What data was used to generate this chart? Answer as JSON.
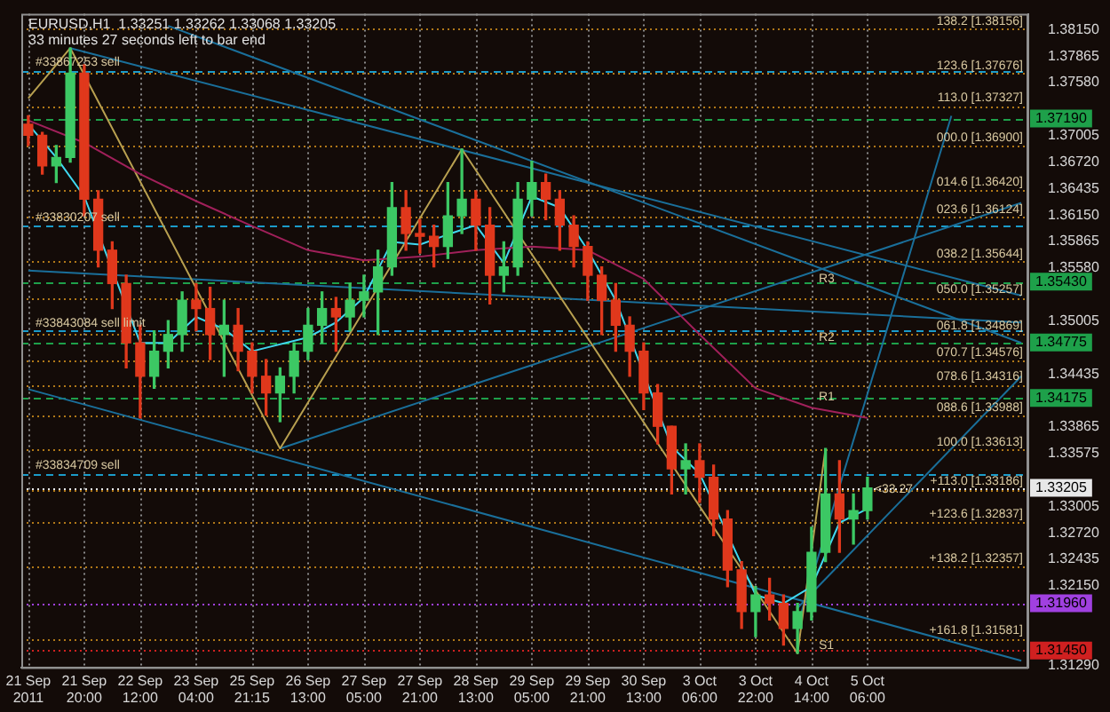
{
  "chart_data": {
    "type": "candlestick",
    "title": "EURUSD,H1  1.33251 1.33262 1.33068 1.33205",
    "subtitle": "33 minutes 27 seconds left to bar end",
    "categories": [
      "21 Sep 2011",
      null,
      null,
      null,
      "21 Sep 20:00",
      null,
      null,
      null,
      "22 Sep 12:00",
      null,
      null,
      null,
      "23 Sep 04:00",
      null,
      null,
      null,
      "25 Sep 21:15",
      null,
      null,
      null,
      "26 Sep 13:00",
      null,
      null,
      null,
      "27 Sep 05:00",
      null,
      null,
      null,
      "27 Sep 21:00",
      null,
      null,
      null,
      "28 Sep 13:00",
      null,
      null,
      null,
      "29 Sep 05:00",
      null,
      null,
      null,
      "29 Sep 21:00",
      null,
      null,
      null,
      "30 Sep 13:00",
      null,
      null,
      null,
      "3 Oct 06:00",
      null,
      null,
      null,
      "3 Oct 22:00",
      null,
      null,
      null,
      "4 Oct 14:00",
      null,
      null,
      null,
      "5 Oct 06:00",
      null,
      null,
      null,
      null,
      null,
      null,
      null,
      null,
      null,
      null,
      null
    ],
    "ohlc": [
      [
        1.3713,
        1.3722,
        1.369,
        1.3701
      ],
      [
        1.3701,
        1.3704,
        1.3659,
        1.3668
      ],
      [
        1.3668,
        1.369,
        1.365,
        1.3677
      ],
      [
        1.3677,
        1.3795,
        1.3672,
        1.3768
      ],
      [
        1.3768,
        1.3777,
        1.3614,
        1.3632
      ],
      [
        1.3632,
        1.3641,
        1.3559,
        1.3577
      ],
      [
        1.3577,
        1.3586,
        1.3514,
        1.3541
      ],
      [
        1.3541,
        1.355,
        1.345,
        1.3477
      ],
      [
        1.3477,
        1.3496,
        1.3396,
        1.3441
      ],
      [
        1.3441,
        1.349,
        1.3428,
        1.3468
      ],
      [
        1.3468,
        1.3501,
        1.345,
        1.3486
      ],
      [
        1.3486,
        1.3532,
        1.3468,
        1.3523
      ],
      [
        1.3523,
        1.3541,
        1.349,
        1.3514
      ],
      [
        1.3514,
        1.3537,
        1.3459,
        1.3486
      ],
      [
        1.3486,
        1.3523,
        1.3441,
        1.3496
      ],
      [
        1.3496,
        1.3514,
        1.3447,
        1.3468
      ],
      [
        1.3468,
        1.3477,
        1.3423,
        1.3441
      ],
      [
        1.3441,
        1.3459,
        1.3399,
        1.3423
      ],
      [
        1.3423,
        1.345,
        1.3392,
        1.3441
      ],
      [
        1.3441,
        1.3477,
        1.3423,
        1.3468
      ],
      [
        1.3468,
        1.3514,
        1.3459,
        1.3496
      ],
      [
        1.3496,
        1.3532,
        1.3477,
        1.3514
      ],
      [
        1.3514,
        1.3526,
        1.3468,
        1.3505
      ],
      [
        1.3505,
        1.3541,
        1.349,
        1.3523
      ],
      [
        1.3523,
        1.355,
        1.3505,
        1.3532
      ],
      [
        1.3532,
        1.3577,
        1.3486,
        1.3559
      ],
      [
        1.3559,
        1.365,
        1.355,
        1.3623
      ],
      [
        1.3623,
        1.3641,
        1.3577,
        1.3595
      ],
      [
        1.3595,
        1.361,
        1.3574,
        1.3592
      ],
      [
        1.3592,
        1.3604,
        1.3559,
        1.3581
      ],
      [
        1.3581,
        1.365,
        1.3568,
        1.3614
      ],
      [
        1.3614,
        1.3686,
        1.3595,
        1.3632
      ],
      [
        1.3632,
        1.3641,
        1.3577,
        1.3604
      ],
      [
        1.3604,
        1.3623,
        1.3519,
        1.355
      ],
      [
        1.355,
        1.3586,
        1.3532,
        1.3559
      ],
      [
        1.3559,
        1.365,
        1.355,
        1.3632
      ],
      [
        1.3632,
        1.3673,
        1.3614,
        1.365
      ],
      [
        1.365,
        1.3659,
        1.361,
        1.3632
      ],
      [
        1.3632,
        1.3641,
        1.3577,
        1.3604
      ],
      [
        1.3604,
        1.3614,
        1.3559,
        1.3581
      ],
      [
        1.3581,
        1.3586,
        1.3523,
        1.355
      ],
      [
        1.355,
        1.3559,
        1.3486,
        1.3523
      ],
      [
        1.3523,
        1.3541,
        1.3468,
        1.3496
      ],
      [
        1.3496,
        1.3505,
        1.3441,
        1.3468
      ],
      [
        1.3468,
        1.3477,
        1.3405,
        1.3423
      ],
      [
        1.3423,
        1.3432,
        1.3368,
        1.3387
      ],
      [
        1.3387,
        1.3387,
        1.3314,
        1.3341
      ],
      [
        1.3341,
        1.3368,
        1.3314,
        1.335
      ],
      [
        1.335,
        1.3368,
        1.3305,
        1.3332
      ],
      [
        1.3332,
        1.3345,
        1.3269,
        1.3287
      ],
      [
        1.3287,
        1.3296,
        1.3214,
        1.3232
      ],
      [
        1.3232,
        1.3241,
        1.3169,
        1.3187
      ],
      [
        1.3187,
        1.3214,
        1.316,
        1.3205
      ],
      [
        1.3205,
        1.3223,
        1.3178,
        1.3196
      ],
      [
        1.3196,
        1.3205,
        1.3151,
        1.3169
      ],
      [
        1.3169,
        1.3196,
        1.3142,
        1.3187
      ],
      [
        1.3187,
        1.3278,
        1.3178,
        1.3251
      ],
      [
        1.3251,
        1.3363,
        1.3241,
        1.3314
      ],
      [
        1.3314,
        1.335,
        1.3251,
        1.3287
      ],
      [
        1.3287,
        1.3314,
        1.326,
        1.3296
      ],
      [
        1.3296,
        1.3332,
        1.3287,
        1.33205
      ],
      null,
      null,
      null,
      null,
      null,
      null,
      null,
      null,
      null,
      null,
      null
    ],
    "colors": [
      "#e0381c",
      "#e0381c",
      "#3cc864",
      "#3cc864",
      "#e0381c",
      "#e0381c",
      "#e0381c",
      "#e0381c",
      "#e0381c",
      "#3cc864",
      "#3cc864",
      "#3cc864",
      "#e0381c",
      "#e0381c",
      "#3cc864",
      "#e0381c",
      "#e0381c",
      "#e0381c",
      "#3cc864",
      "#3cc864",
      "#3cc864",
      "#3cc864",
      "#e0381c",
      "#3cc864",
      "#3cc864",
      "#3cc864",
      "#3cc864",
      "#e0381c",
      "#e0381c",
      "#e0381c",
      "#3cc864",
      "#3cc864",
      "#e0381c",
      "#e0381c",
      "#3cc864",
      "#3cc864",
      "#3cc864",
      "#e0381c",
      "#e0381c",
      "#e0381c",
      "#e0381c",
      "#e0381c",
      "#e0381c",
      "#e0381c",
      "#e0381c",
      "#e0381c",
      "#e0381c",
      "#3cc864",
      "#e0381c",
      "#e0381c",
      "#e0381c",
      "#e0381c",
      "#3cc864",
      "#e0381c",
      "#e0381c",
      "#3cc864",
      "#3cc864",
      "#3cc864",
      "#e0381c",
      "#3cc864",
      "#3cc864",
      null,
      null,
      null,
      null,
      null,
      null,
      null,
      null,
      null,
      null,
      null
    ],
    "series": [
      {
        "type": "line",
        "color": "#a0205a",
        "values": [
          1.3717,
          null,
          null,
          null,
          1.3693,
          null,
          null,
          null,
          1.3659,
          null,
          null,
          null,
          1.363,
          null,
          null,
          null,
          1.3603,
          null,
          null,
          null,
          1.3577,
          null,
          null,
          null,
          1.3566,
          null,
          null,
          null,
          1.357,
          null,
          null,
          null,
          1.3577,
          null,
          null,
          null,
          1.3581,
          null,
          null,
          null,
          1.3577,
          null,
          null,
          null,
          1.3546,
          null,
          null,
          null,
          1.3486,
          null,
          null,
          null,
          1.3428,
          null,
          null,
          null,
          1.3407,
          null,
          null,
          null,
          1.3396,
          null,
          null,
          null,
          null,
          null,
          null,
          null,
          null,
          null,
          null,
          null
        ]
      },
      {
        "type": "line",
        "color": "#40d8f0",
        "values": [
          1.3713,
          null,
          1.3677,
          null,
          1.3635,
          null,
          null,
          null,
          1.3477,
          null,
          1.3477,
          null,
          1.3505,
          null,
          1.3492,
          null,
          1.3468,
          null,
          null,
          null,
          1.3483,
          null,
          1.3499,
          null,
          1.3526,
          null,
          1.3586,
          null,
          1.3583,
          null,
          1.3594,
          null,
          1.3604,
          null,
          1.3563,
          null,
          1.3635,
          null,
          1.3623,
          null,
          1.3577,
          null,
          1.3523,
          null,
          null,
          null,
          1.3365,
          null,
          1.3336,
          null,
          null,
          null,
          1.3205,
          null,
          1.3196,
          null,
          1.3214,
          null,
          1.3283,
          null,
          1.3298,
          null,
          null,
          null,
          null,
          null,
          null,
          null,
          null,
          null,
          null,
          null
        ]
      },
      {
        "type": "line",
        "color": "#b8a050",
        "values": [
          1.3741,
          null,
          null,
          1.3795,
          null,
          null,
          null,
          null,
          null,
          null,
          null,
          null,
          null,
          null,
          null,
          null,
          null,
          null,
          1.3363,
          null,
          null,
          null,
          null,
          null,
          null,
          null,
          null,
          null,
          null,
          null,
          null,
          1.3686,
          null,
          null,
          null,
          null,
          null,
          null,
          null,
          null,
          null,
          null,
          null,
          null,
          null,
          null,
          null,
          null,
          null,
          null,
          null,
          null,
          null,
          null,
          null,
          1.3142,
          null,
          1.3363,
          null,
          null,
          null,
          null,
          null,
          null,
          null,
          null,
          null,
          null,
          null,
          null,
          null,
          null
        ]
      },
      {
        "type": "line",
        "color": "#1a6f9a",
        "values": [
          null,
          null,
          null,
          null,
          null,
          null,
          null,
          null,
          null,
          null,
          1.3819,
          null,
          null,
          null,
          null,
          null,
          null,
          null,
          null,
          null,
          null,
          null,
          null,
          null,
          null,
          null,
          null,
          null,
          null,
          null,
          null,
          null,
          null,
          null,
          null,
          null,
          null,
          null,
          null,
          null,
          null,
          null,
          null,
          null,
          null,
          null,
          null,
          null,
          null,
          null,
          null,
          null,
          null,
          null,
          null,
          null,
          null,
          null,
          null,
          null,
          null,
          null,
          null,
          null,
          null,
          null,
          null,
          null,
          null,
          null,
          null,
          1.3477
        ]
      },
      {
        "type": "line",
        "color": "#1a6f9a",
        "values": [
          null,
          null,
          null,
          1.3795,
          null,
          null,
          null,
          null,
          null,
          null,
          null,
          null,
          null,
          null,
          null,
          null,
          null,
          null,
          null,
          null,
          null,
          null,
          null,
          null,
          null,
          null,
          null,
          null,
          null,
          null,
          null,
          null,
          null,
          null,
          null,
          null,
          null,
          null,
          null,
          null,
          null,
          null,
          null,
          null,
          null,
          null,
          null,
          null,
          null,
          null,
          null,
          null,
          null,
          null,
          null,
          null,
          null,
          null,
          null,
          null,
          null,
          null,
          null,
          null,
          null,
          null,
          null,
          null,
          null,
          null,
          null,
          1.3528
        ]
      },
      {
        "type": "line",
        "color": "#1a6f9a",
        "values": [
          1.3427,
          null,
          null,
          null,
          null,
          null,
          null,
          null,
          null,
          null,
          null,
          null,
          null,
          null,
          null,
          null,
          null,
          null,
          null,
          null,
          null,
          null,
          null,
          null,
          null,
          null,
          null,
          null,
          null,
          null,
          null,
          null,
          null,
          null,
          null,
          null,
          null,
          null,
          null,
          null,
          null,
          null,
          null,
          null,
          null,
          null,
          null,
          null,
          null,
          null,
          null,
          null,
          null,
          null,
          null,
          null,
          null,
          null,
          null,
          null,
          null,
          null,
          null,
          null,
          null,
          null,
          null,
          null,
          null,
          null,
          null,
          1.3134
        ]
      },
      {
        "type": "line",
        "color": "#1a6f9a",
        "values": [
          1.3555,
          null,
          null,
          null,
          null,
          null,
          null,
          null,
          null,
          null,
          null,
          null,
          null,
          null,
          null,
          null,
          null,
          null,
          null,
          null,
          null,
          null,
          null,
          null,
          null,
          null,
          null,
          null,
          null,
          null,
          null,
          null,
          null,
          null,
          null,
          null,
          null,
          null,
          null,
          null,
          null,
          null,
          null,
          null,
          null,
          null,
          null,
          null,
          null,
          null,
          null,
          null,
          null,
          null,
          null,
          null,
          null,
          null,
          null,
          null,
          null,
          null,
          null,
          null,
          null,
          null,
          null,
          null,
          null,
          null,
          null,
          1.3499
        ]
      },
      {
        "type": "line",
        "color": "#1a6f9a",
        "values": [
          null,
          null,
          null,
          null,
          null,
          null,
          null,
          null,
          null,
          null,
          null,
          null,
          null,
          null,
          null,
          null,
          null,
          null,
          1.3363,
          null,
          null,
          null,
          null,
          null,
          null,
          null,
          null,
          null,
          null,
          null,
          null,
          null,
          null,
          null,
          null,
          null,
          null,
          null,
          null,
          null,
          null,
          null,
          null,
          null,
          null,
          null,
          null,
          null,
          null,
          null,
          null,
          null,
          null,
          null,
          null,
          null,
          null,
          null,
          null,
          null,
          null,
          null,
          null,
          null,
          null,
          null,
          null,
          null,
          null,
          null,
          null,
          1.3628
        ]
      },
      {
        "type": "line",
        "color": "#1a6f9a",
        "values": [
          null,
          null,
          null,
          null,
          null,
          null,
          null,
          null,
          null,
          null,
          null,
          null,
          null,
          null,
          null,
          null,
          null,
          null,
          null,
          null,
          null,
          null,
          null,
          null,
          null,
          null,
          null,
          null,
          null,
          null,
          null,
          null,
          null,
          null,
          null,
          null,
          null,
          null,
          null,
          null,
          null,
          null,
          null,
          null,
          null,
          null,
          null,
          null,
          null,
          null,
          null,
          null,
          null,
          null,
          null,
          1.3172,
          null,
          null,
          null,
          null,
          null,
          null,
          null,
          null,
          null,
          null,
          1.3722,
          null,
          null,
          null,
          null,
          null
        ]
      },
      {
        "type": "line",
        "color": "#1a6f9a",
        "values": [
          null,
          null,
          null,
          null,
          null,
          null,
          null,
          null,
          null,
          null,
          null,
          null,
          null,
          null,
          null,
          null,
          null,
          null,
          null,
          null,
          null,
          null,
          null,
          null,
          null,
          null,
          null,
          null,
          null,
          null,
          null,
          null,
          null,
          null,
          null,
          null,
          null,
          null,
          null,
          null,
          null,
          null,
          null,
          null,
          null,
          null,
          null,
          null,
          null,
          null,
          null,
          null,
          null,
          null,
          null,
          1.3191,
          null,
          null,
          null,
          null,
          null,
          null,
          null,
          null,
          null,
          null,
          null,
          null,
          null,
          null,
          null,
          1.3441
        ]
      }
    ],
    "ylim": [
      1.3127,
      1.3832
    ],
    "yticks": [
      {
        "value": 1.3815,
        "label": "1.38150"
      },
      {
        "value": 1.37865,
        "label": "1.37865"
      },
      {
        "value": 1.3758,
        "label": "1.37580"
      },
      {
        "value": 1.37005,
        "label": "1.37005"
      },
      {
        "value": 1.3672,
        "label": "1.36720"
      },
      {
        "value": 1.36435,
        "label": "1.36435"
      },
      {
        "value": 1.3615,
        "label": "1.36150"
      },
      {
        "value": 1.35865,
        "label": "1.35865"
      },
      {
        "value": 1.3558,
        "label": "1.35580"
      },
      {
        "value": 1.35005,
        "label": "1.35005"
      },
      {
        "value": 1.34435,
        "label": "1.34435"
      },
      {
        "value": 1.33865,
        "label": "1.33865"
      },
      {
        "value": 1.33575,
        "label": "1.33575"
      },
      {
        "value": 1.33005,
        "label": "1.33005"
      },
      {
        "value": 1.3272,
        "label": "1.32720"
      },
      {
        "value": 1.32435,
        "label": "1.32435"
      },
      {
        "value": 1.3215,
        "label": "1.32150"
      },
      {
        "value": 1.3129,
        "label": "1.31290"
      }
    ],
    "grid": "x",
    "marker": "none",
    "ref_lines": [
      {
        "axis": "y",
        "value": 1.38156,
        "color": "#b07818",
        "line_style": "dotted"
      },
      {
        "axis": "y",
        "value": 1.37676,
        "color": "#b07818",
        "line_style": "dotted"
      },
      {
        "axis": "y",
        "value": 1.37327,
        "color": "#b07818",
        "line_style": "dotted"
      },
      {
        "axis": "y",
        "value": 1.369,
        "color": "#b07818",
        "line_style": "dotted"
      },
      {
        "axis": "y",
        "value": 1.3642,
        "color": "#b07818",
        "line_style": "dotted"
      },
      {
        "axis": "y",
        "value": 1.36124,
        "color": "#b07818",
        "line_style": "dotted"
      },
      {
        "axis": "y",
        "value": 1.35644,
        "color": "#b07818",
        "line_style": "dotted"
      },
      {
        "axis": "y",
        "value": 1.35257,
        "color": "#b07818",
        "line_style": "dotted"
      },
      {
        "axis": "y",
        "value": 1.34869,
        "color": "#b07818",
        "line_style": "dotted"
      },
      {
        "axis": "y",
        "value": 1.34576,
        "color": "#b07818",
        "line_style": "dotted"
      },
      {
        "axis": "y",
        "value": 1.34316,
        "color": "#b07818",
        "line_style": "dotted"
      },
      {
        "axis": "y",
        "value": 1.33988,
        "color": "#b07818",
        "line_style": "dotted"
      },
      {
        "axis": "y",
        "value": 1.33613,
        "color": "#b07818",
        "line_style": "dotted"
      },
      {
        "axis": "y",
        "value": 1.33186,
        "color": "#b07818",
        "line_style": "dotted"
      },
      {
        "axis": "y",
        "value": 1.32837,
        "color": "#b07818",
        "line_style": "dotted"
      },
      {
        "axis": "y",
        "value": 1.32357,
        "color": "#b07818",
        "line_style": "dotted"
      },
      {
        "axis": "y",
        "value": 1.31581,
        "color": "#b07818",
        "line_style": "dotted"
      },
      {
        "axis": "y",
        "value": 1.3771,
        "color": "#1b9bc9",
        "line_style": "dashed"
      },
      {
        "axis": "y",
        "value": 1.3604,
        "color": "#1b9bc9",
        "line_style": "dashed"
      },
      {
        "axis": "y",
        "value": 1.349,
        "color": "#1b9bc9",
        "line_style": "dashed"
      },
      {
        "axis": "y",
        "value": 1.3336,
        "color": "#1b9bc9",
        "line_style": "dashed"
      },
      {
        "axis": "y",
        "value": 1.3719,
        "label": "1.37190",
        "color": "#1ea04a",
        "line_style": "dashed"
      },
      {
        "axis": "y",
        "value": 1.3543,
        "label": "1.35430",
        "color": "#1ea04a",
        "line_style": "dashed"
      },
      {
        "axis": "y",
        "value": 1.34775,
        "label": "1.34775",
        "color": "#1ea04a",
        "line_style": "dashed"
      },
      {
        "axis": "y",
        "value": 1.34175,
        "label": "1.34175",
        "color": "#1ea04a",
        "line_style": "dashed"
      },
      {
        "axis": "y",
        "value": 1.33205,
        "label": "1.33205",
        "color": "#e8e8e8",
        "line_style": "dotted"
      },
      {
        "axis": "y",
        "value": 1.3196,
        "label": "1.31960",
        "color": "#a040e0",
        "line_style": "dotted"
      },
      {
        "axis": "y",
        "value": 1.3145,
        "label": "1.31450",
        "color": "#d02020",
        "line_style": "dotted"
      }
    ],
    "annotations": [
      {
        "text": "138.2 [1.38156]",
        "y": 1.38156
      },
      {
        "text": "123.6 [1.37676]",
        "y": 1.37676
      },
      {
        "text": "113.0 [1.37327]",
        "y": 1.37327
      },
      {
        "text": "000.0 [1.36900]",
        "y": 1.369
      },
      {
        "text": "014.6 [1.36420]",
        "y": 1.3642
      },
      {
        "text": "023.6 [1.36124]",
        "y": 1.36124
      },
      {
        "text": "038.2 [1.35644]",
        "y": 1.35644
      },
      {
        "text": "050.0 [1.35257]",
        "y": 1.35257
      },
      {
        "text": "061.8 [1.34869]",
        "y": 1.34869
      },
      {
        "text": "070.7 [1.34576]",
        "y": 1.34576
      },
      {
        "text": "078.6 [1.34316]",
        "y": 1.34316
      },
      {
        "text": "088.6 [1.33988]",
        "y": 1.33988
      },
      {
        "text": "100.0 [1.33613]",
        "y": 1.33613
      },
      {
        "text": "+113.0 [1.33186]",
        "y": 1.33186
      },
      {
        "text": "+123.6 [1.32837]",
        "y": 1.32837
      },
      {
        "text": "+138.2 [1.32357]",
        "y": 1.32357
      },
      {
        "text": "+161.8 [1.31581]",
        "y": 1.31581
      },
      {
        "text": "#33867253 sell",
        "x": "21 Sep 2011",
        "y": 1.3771
      },
      {
        "text": "#33830207 sell",
        "x": "21 Sep 2011",
        "y": 1.3604
      },
      {
        "text": "#33843084 sell limit",
        "x": "21 Sep 2011",
        "y": 1.349
      },
      {
        "text": "#33834709 sell",
        "x": "21 Sep 2011",
        "y": 1.3336
      },
      {
        "text": "R3",
        "x": "4 Oct 14:00",
        "y": 1.3537
      },
      {
        "text": "R2",
        "x": "4 Oct 14:00",
        "y": 1.3474
      },
      {
        "text": "R1",
        "x": "4 Oct 14:00",
        "y": 1.341
      },
      {
        "text": "S1",
        "x": "4 Oct 14:00",
        "y": 1.3142
      },
      {
        "text": "<33.27",
        "x": "5 Oct 06:00",
        "y": 1.331
      }
    ]
  }
}
